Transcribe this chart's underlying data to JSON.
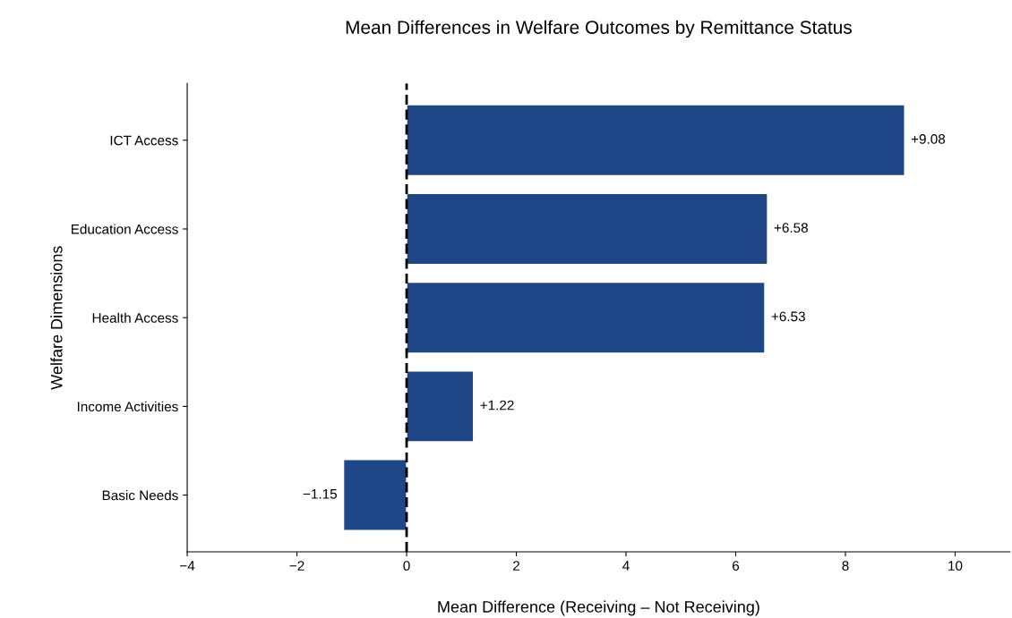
{
  "chart_data": {
    "type": "bar",
    "orientation": "horizontal",
    "title": "Mean Differences in Welfare Outcomes by Remittance Status",
    "xlabel": "Mean Difference (Receiving – Not Receiving)",
    "ylabel": "Welfare Dimensions",
    "categories": [
      "ICT Access",
      "Education Access",
      "Health Access",
      "Income Activities",
      "Basic Needs"
    ],
    "values": [
      9.08,
      6.58,
      6.53,
      1.22,
      -1.15
    ],
    "value_labels": [
      "+9.08",
      "+6.58",
      "+6.53",
      "+1.22",
      "−1.15"
    ],
    "color": "#1f4788",
    "xlim": [
      -4,
      11
    ],
    "xticks": [
      {
        "value": -4,
        "label": "−4"
      },
      {
        "value": -2,
        "label": "−2"
      },
      0,
      2,
      4,
      6,
      8,
      10
    ],
    "ref_lines": [
      {
        "axis": "x",
        "value": 0,
        "color": "#000000",
        "line_style": "dashed"
      }
    ],
    "grid": false,
    "legend": false
  }
}
